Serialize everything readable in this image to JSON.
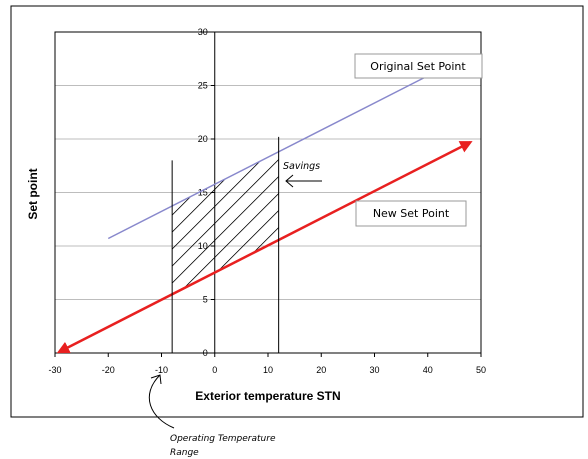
{
  "chart_data": {
    "type": "line",
    "title": "",
    "xlabel": "Exterior temperature STN",
    "ylabel": "Set point",
    "xlim": [
      -30,
      50
    ],
    "ylim": [
      0,
      30
    ],
    "x_ticks": [
      -30,
      -20,
      -10,
      0,
      10,
      20,
      30,
      40,
      50
    ],
    "y_ticks": [
      0,
      5,
      10,
      15,
      20,
      25,
      30
    ],
    "grid": "horizontal",
    "series": [
      {
        "name": "Original Set Point",
        "color": "#8888cc",
        "points": [
          [
            -20,
            10.7
          ],
          [
            40,
            25.9
          ]
        ]
      },
      {
        "name": "New Set Point",
        "color": "#e82020",
        "points": [
          [
            -30,
            0
          ],
          [
            48,
            19.7
          ]
        ],
        "arrows": "both"
      }
    ],
    "operating_range": [
      -8,
      12
    ],
    "operating_range_lines": [
      {
        "x": -8,
        "y_top": 18
      },
      {
        "x": 12,
        "y_top": 20.2
      }
    ],
    "annotations": {
      "savings": "Savings",
      "operating_range_line1": "Operating Temperature",
      "operating_range_line2": "Range"
    },
    "callouts": {
      "original": "Original Set Point",
      "new": "New Set Point"
    }
  }
}
